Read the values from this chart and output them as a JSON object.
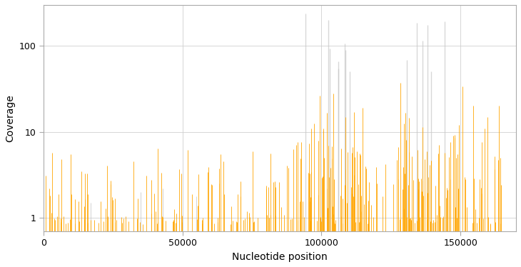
{
  "title": "",
  "xlabel": "Nucleotide position",
  "ylabel": "Coverage",
  "xlim": [
    0,
    170000
  ],
  "ylim_log": [
    0.7,
    300
  ],
  "xticks": [
    0,
    50000,
    100000,
    150000
  ],
  "yticks": [
    1,
    10,
    100
  ],
  "background_color": "#ffffff",
  "grid_color": "#cccccc",
  "orange_color": "#FFA500",
  "gray_color": "#c8c8c8",
  "seed": 42
}
